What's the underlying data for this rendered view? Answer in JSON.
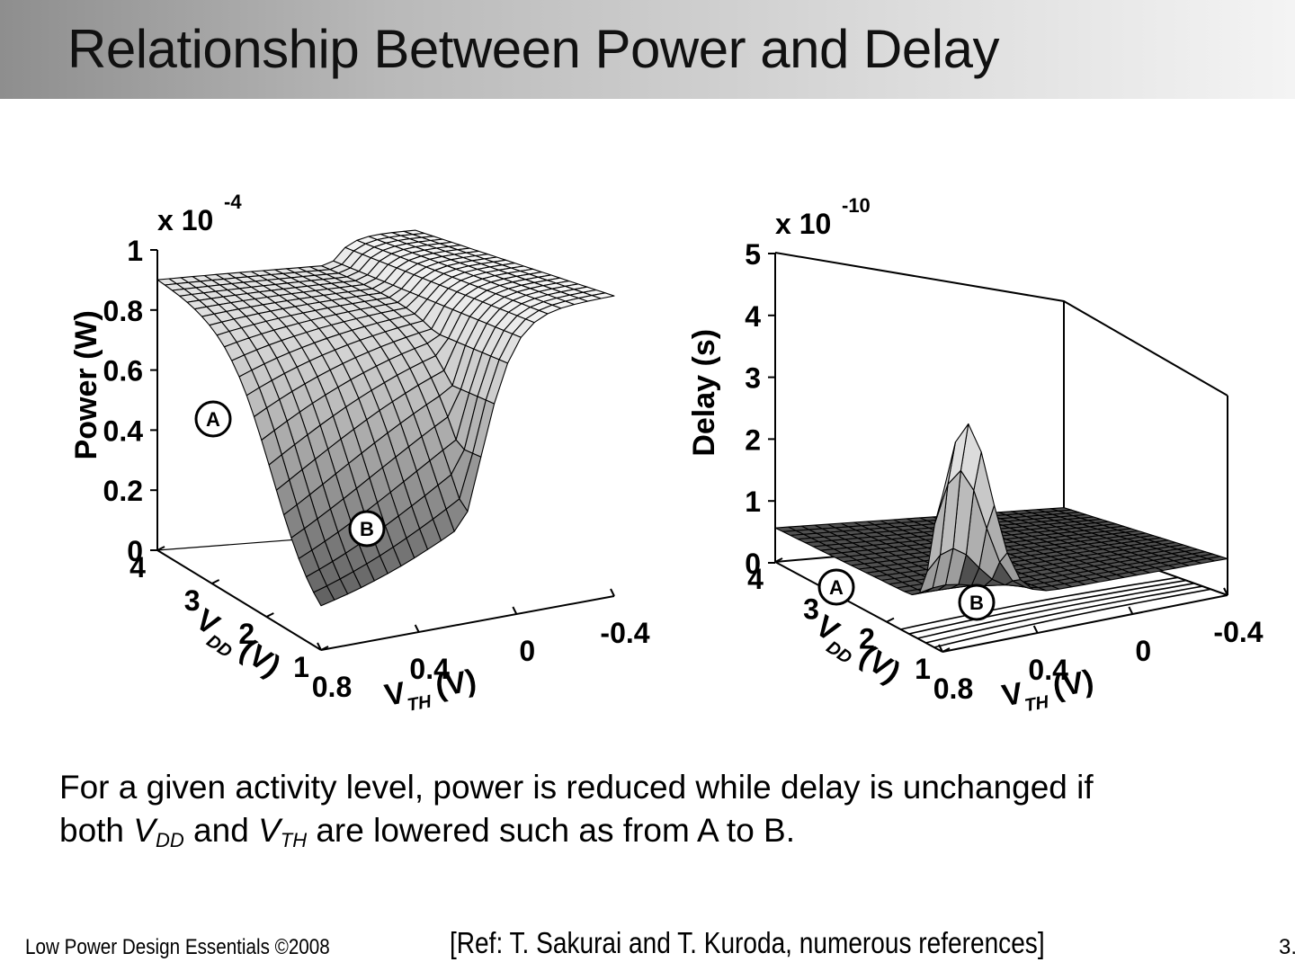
{
  "slide": {
    "title": "Relationship Between Power and Delay",
    "body_line1": "For a given activity level, power is reduced while delay is unchanged if",
    "body_line2_parts": {
      "both": "both ",
      "vdd": "V",
      "vdd_sub": "DD",
      "and": " and ",
      "vth": "V",
      "vth_sub": "TH",
      "rest": " are lowered such as from A to B."
    },
    "footer_left": "Low Power Design Essentials ©2008",
    "footer_ref": "[Ref: T. Sakurai and T. Kuroda, numerous references]",
    "page_number": "3.",
    "colors": {
      "title_gradient_start": "#8e8e8e",
      "title_gradient_end": "#f4f4f4",
      "surface_light": "#f2f2f2",
      "surface_dark": "#4a4a4a"
    }
  },
  "chart_data": [
    {
      "type": "surface3d",
      "title": "",
      "multiplier": "x 10",
      "multiplier_exp": "-4",
      "zlabel": "Power (W)",
      "xlabel_main": "V",
      "xlabel_sub": "DD",
      "xlabel_unit": "(V)",
      "ylabel_main": "V",
      "ylabel_sub": "TH",
      "ylabel_unit": "(V)",
      "z_ticks": [
        "0",
        "0.2",
        "0.4",
        "0.6",
        "0.8",
        "1"
      ],
      "vdd_ticks": [
        "1",
        "2",
        "3",
        "4"
      ],
      "vth_ticks": [
        "0.8",
        "0.4",
        "0",
        "-0.4"
      ],
      "vdd_range": [
        1,
        4
      ],
      "vth_range": [
        -0.4,
        0.8
      ],
      "zlim": [
        0,
        1
      ],
      "markers": [
        {
          "label": "A",
          "vdd": 3.2,
          "vth": 0.6
        },
        {
          "label": "B",
          "vdd": 1.8,
          "vth": 0.3
        }
      ]
    },
    {
      "type": "surface3d",
      "title": "",
      "multiplier": "x 10",
      "multiplier_exp": "-10",
      "zlabel": "Delay (s)",
      "xlabel_main": "V",
      "xlabel_sub": "DD",
      "xlabel_unit": "(V)",
      "ylabel_main": "V",
      "ylabel_sub": "TH",
      "ylabel_unit": "(V)",
      "z_ticks": [
        "0",
        "1",
        "2",
        "3",
        "4",
        "5"
      ],
      "vdd_ticks": [
        "1",
        "2",
        "3",
        "4"
      ],
      "vth_ticks": [
        "0.8",
        "0.4",
        "0",
        "-0.4"
      ],
      "vdd_range": [
        1,
        4
      ],
      "vth_range": [
        -0.4,
        0.8
      ],
      "zlim": [
        0,
        5
      ],
      "markers": [
        {
          "label": "A",
          "vdd": 3.2,
          "vth": 0.6
        },
        {
          "label": "B",
          "vdd": 1.8,
          "vth": 0.3
        }
      ]
    }
  ]
}
